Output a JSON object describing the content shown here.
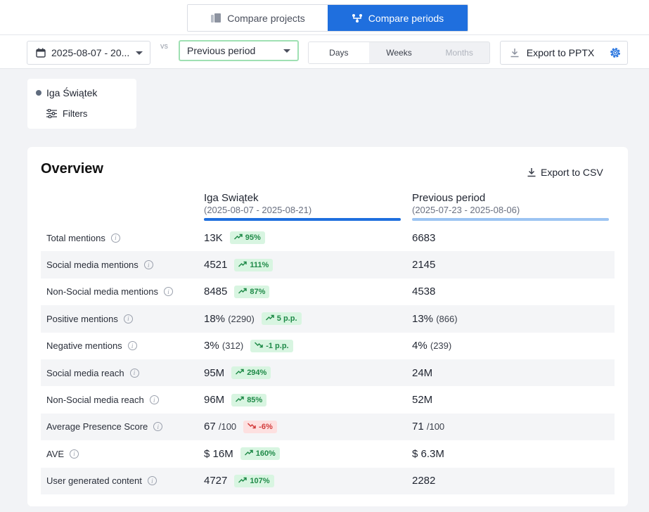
{
  "header": {
    "tabs": [
      {
        "label": "Compare projects",
        "active": false
      },
      {
        "label": "Compare periods",
        "active": true
      }
    ]
  },
  "toolbar": {
    "date_range": "2025-08-07 - 20...",
    "vs_label": "vs",
    "period_select": "Previous period",
    "granularity": [
      "Days",
      "Weeks",
      "Months"
    ],
    "granularity_selected": "Days",
    "export_pptx": "Export to PPTX"
  },
  "entity": {
    "name": "Iga Świątek",
    "filters_label": "Filters"
  },
  "overview": {
    "title": "Overview",
    "export_csv": "Export to CSV",
    "columns": [
      {
        "title": "Iga Swiątek",
        "range": "(2025-08-07 - 2025-08-21)"
      },
      {
        "title": "Previous period",
        "range": "(2025-07-23 - 2025-08-06)"
      }
    ],
    "rows": [
      {
        "label": "Total mentions",
        "cur": "13K",
        "cur_sub": "",
        "change": "95%",
        "dir": "up",
        "prev": "6683",
        "prev_sub": ""
      },
      {
        "label": "Social media mentions",
        "cur": "4521",
        "cur_sub": "",
        "change": "111%",
        "dir": "up",
        "prev": "2145",
        "prev_sub": ""
      },
      {
        "label": "Non-Social media mentions",
        "cur": "8485",
        "cur_sub": "",
        "change": "87%",
        "dir": "up",
        "prev": "4538",
        "prev_sub": ""
      },
      {
        "label": "Positive mentions",
        "cur": "18%",
        "cur_sub": "(2290)",
        "change": "5 p.p.",
        "dir": "up",
        "prev": "13%",
        "prev_sub": "(866)"
      },
      {
        "label": "Negative mentions",
        "cur": "3%",
        "cur_sub": "(312)",
        "change": "-1 p.p.",
        "dir": "down-green",
        "prev": "4%",
        "prev_sub": "(239)"
      },
      {
        "label": "Social media reach",
        "cur": "95M",
        "cur_sub": "",
        "change": "294%",
        "dir": "up",
        "prev": "24M",
        "prev_sub": ""
      },
      {
        "label": "Non-Social media reach",
        "cur": "96M",
        "cur_sub": "",
        "change": "85%",
        "dir": "up",
        "prev": "52M",
        "prev_sub": ""
      },
      {
        "label": "Average Presence Score",
        "cur": "67",
        "cur_sub": "/100",
        "change": "-6%",
        "dir": "down-red",
        "prev": "71",
        "prev_sub": "/100"
      },
      {
        "label": "AVE",
        "cur": "$ 16M",
        "cur_sub": "",
        "change": "160%",
        "dir": "up",
        "prev": "$ 6.3M",
        "prev_sub": ""
      },
      {
        "label": "User generated content",
        "cur": "4727",
        "cur_sub": "",
        "change": "107%",
        "dir": "up",
        "prev": "2282",
        "prev_sub": ""
      }
    ]
  },
  "colors": {
    "accent": "#1f6fde",
    "positive": "#1f8a48",
    "negative": "#d23b3b"
  }
}
